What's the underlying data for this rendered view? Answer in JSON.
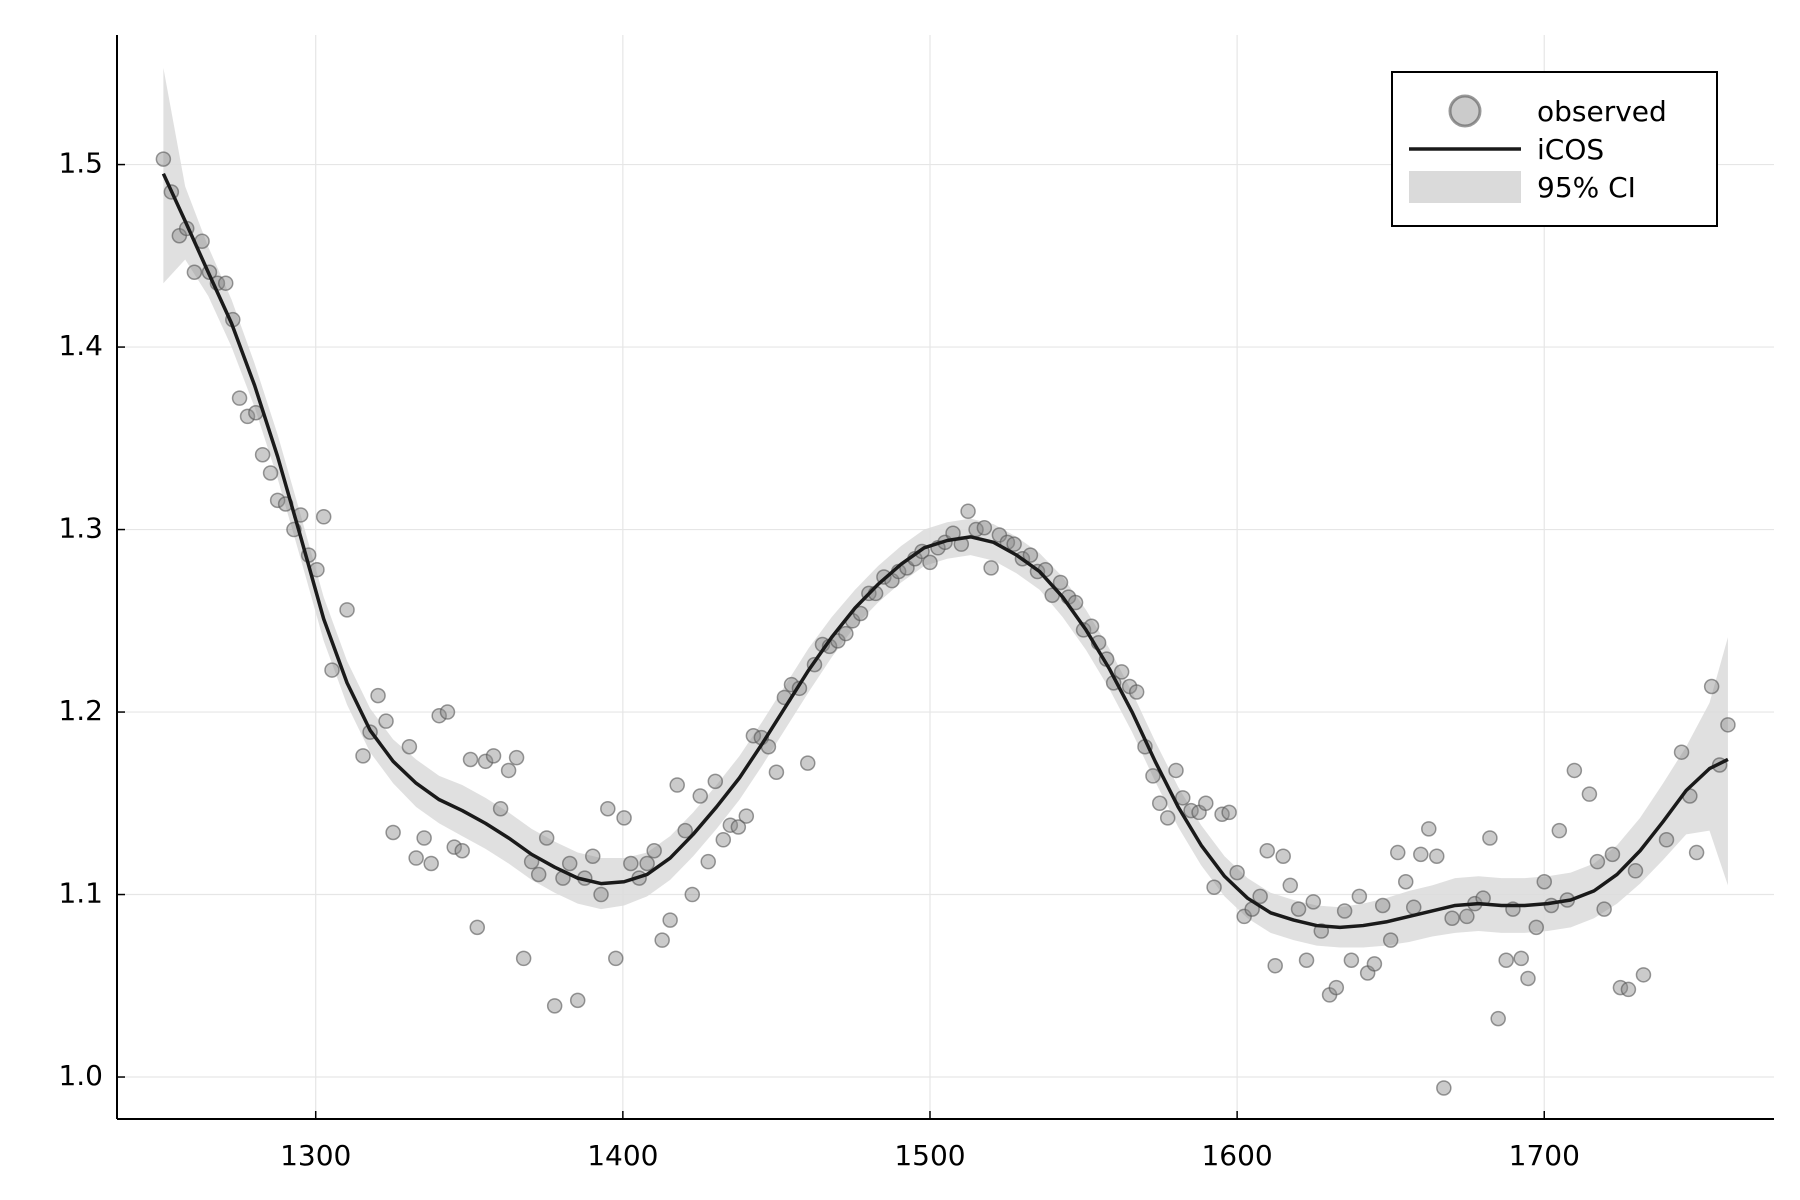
{
  "chart_data": {
    "type": "scatter",
    "xlim": [
      1235.3,
      1774.8
    ],
    "ylim": [
      0.977,
      1.571
    ],
    "xticks": [
      1300,
      1400,
      1500,
      1600,
      1700
    ],
    "yticks": [
      {
        "value": 1,
        "label": "1.0"
      },
      1.1,
      1.2,
      1.3,
      1.4,
      1.5
    ],
    "grid": true,
    "legend": "top-right",
    "series": [
      {
        "name": "observed",
        "type": "scatter",
        "color": "#8c8c8c",
        "x": [
          1250.4,
          1253,
          1255.6,
          1258,
          1260.5,
          1263,
          1265.4,
          1268,
          1270.7,
          1273,
          1275.2,
          1277.8,
          1280.5,
          1282.7,
          1285.3,
          1287.6,
          1290.2,
          1292.9,
          1295.1,
          1297.7,
          1300.4,
          1302.6,
          1305.3,
          1310.2,
          1315.4,
          1317.7,
          1320.3,
          1322.9,
          1325.2,
          1330.5,
          1332.7,
          1335.3,
          1337.6,
          1340.2,
          1342.9,
          1345.1,
          1347.7,
          1350.4,
          1352.6,
          1355.3,
          1357.9,
          1360.2,
          1362.8,
          1365.4,
          1367.7,
          1370.3,
          1372.6,
          1375.2,
          1377.8,
          1380.5,
          1382.7,
          1385.3,
          1387.6,
          1390.2,
          1392.9,
          1395.1,
          1397.7,
          1400.4,
          1402.6,
          1405.3,
          1407.9,
          1410.2,
          1412.8,
          1415.4,
          1417.7,
          1420.3,
          1422.6,
          1425.2,
          1427.8,
          1430.1,
          1432.7,
          1435,
          1437.6,
          1440.2,
          1442.5,
          1445.1,
          1447.4,
          1450,
          1452.6,
          1454.9,
          1457.5,
          1460.2,
          1462.4,
          1465,
          1467.3,
          1470,
          1472.6,
          1474.8,
          1477.4,
          1480.1,
          1482.3,
          1485,
          1487.6,
          1489.8,
          1492.5,
          1495.1,
          1497.4,
          1500,
          1502.6,
          1504.9,
          1507.5,
          1510.2,
          1512.4,
          1515,
          1517.7,
          1519.9,
          1522.6,
          1525.2,
          1527.4,
          1530.1,
          1532.7,
          1535,
          1537.6,
          1539.8,
          1542.5,
          1545.1,
          1547.4,
          1550,
          1552.6,
          1554.9,
          1557.5,
          1559.8,
          1562.4,
          1565,
          1567.3,
          1570,
          1572.6,
          1574.8,
          1577.4,
          1580.1,
          1582.3,
          1585,
          1587.6,
          1589.8,
          1592.5,
          1595.1,
          1597.4,
          1600,
          1602.3,
          1604.9,
          1607.5,
          1609.8,
          1612.4,
          1615,
          1617.3,
          1620,
          1622.6,
          1624.8,
          1627.4,
          1630.1,
          1632.3,
          1635,
          1637.2,
          1639.8,
          1642.5,
          1644.7,
          1647.4,
          1650,
          1652.3,
          1654.9,
          1657.5,
          1659.8,
          1662.4,
          1665,
          1667.3,
          1670,
          1674.8,
          1677.4,
          1680.1,
          1682.3,
          1685,
          1687.6,
          1689.8,
          1692.5,
          1694.7,
          1697.4,
          1700,
          1702.3,
          1704.9,
          1707.5,
          1709.8,
          1714.7,
          1717.3,
          1719.5,
          1722.2,
          1724.8,
          1727.4,
          1729.7,
          1732.3,
          1739.8,
          1744.7,
          1747.4,
          1749.6,
          1754.5,
          1757.1,
          1759.8
        ],
        "values": [
          1.503,
          1.485,
          1.461,
          1.465,
          1.441,
          1.458,
          1.441,
          1.435,
          1.435,
          1.415,
          1.372,
          1.362,
          1.364,
          1.341,
          1.331,
          1.316,
          1.314,
          1.3,
          1.308,
          1.286,
          1.278,
          1.307,
          1.223,
          1.256,
          1.176,
          1.189,
          1.209,
          1.195,
          1.134,
          1.181,
          1.12,
          1.131,
          1.117,
          1.198,
          1.2,
          1.126,
          1.124,
          1.174,
          1.082,
          1.173,
          1.176,
          1.147,
          1.168,
          1.175,
          1.065,
          1.118,
          1.111,
          1.131,
          1.039,
          1.109,
          1.117,
          1.042,
          1.109,
          1.121,
          1.1,
          1.147,
          1.065,
          1.142,
          1.117,
          1.109,
          1.117,
          1.124,
          1.075,
          1.086,
          1.16,
          1.135,
          1.1,
          1.154,
          1.118,
          1.162,
          1.13,
          1.138,
          1.137,
          1.143,
          1.187,
          1.186,
          1.181,
          1.167,
          1.208,
          1.215,
          1.213,
          1.172,
          1.226,
          1.237,
          1.236,
          1.239,
          1.243,
          1.25,
          1.254,
          1.265,
          1.265,
          1.274,
          1.272,
          1.277,
          1.279,
          1.284,
          1.288,
          1.282,
          1.29,
          1.293,
          1.298,
          1.292,
          1.31,
          1.3,
          1.301,
          1.279,
          1.297,
          1.293,
          1.292,
          1.284,
          1.286,
          1.277,
          1.278,
          1.264,
          1.271,
          1.263,
          1.26,
          1.245,
          1.247,
          1.238,
          1.229,
          1.216,
          1.222,
          1.214,
          1.211,
          1.181,
          1.165,
          1.15,
          1.142,
          1.168,
          1.153,
          1.146,
          1.145,
          1.15,
          1.104,
          1.144,
          1.145,
          1.112,
          1.088,
          1.092,
          1.099,
          1.124,
          1.061,
          1.121,
          1.105,
          1.092,
          1.064,
          1.096,
          1.08,
          1.045,
          1.049,
          1.091,
          1.064,
          1.099,
          1.057,
          1.062,
          1.094,
          1.075,
          1.123,
          1.107,
          1.093,
          1.122,
          1.136,
          1.121,
          0.994,
          1.087,
          1.088,
          1.095,
          1.098,
          1.131,
          1.032,
          1.064,
          1.092,
          1.065,
          1.054,
          1.082,
          1.107,
          1.094,
          1.135,
          1.097,
          1.168,
          1.155,
          1.118,
          1.092,
          1.122,
          1.049,
          1.048,
          1.113,
          1.056,
          1.13,
          1.178,
          1.154,
          1.123,
          1.214,
          1.171,
          1.193
        ]
      },
      {
        "name": "iCOS",
        "type": "line",
        "color": "#1a1a1a",
        "x": [
          1250.4,
          1257.5,
          1265,
          1272.6,
          1280.1,
          1287.6,
          1295.1,
          1302.6,
          1310.2,
          1317.7,
          1325.2,
          1332.7,
          1340.2,
          1347.7,
          1355.3,
          1362.8,
          1370.3,
          1377.8,
          1385.3,
          1392.9,
          1400.4,
          1407.9,
          1415.4,
          1422.9,
          1430.5,
          1438,
          1445.5,
          1453,
          1460.5,
          1468,
          1475.6,
          1483.1,
          1490.6,
          1498.1,
          1505.6,
          1513.2,
          1520.7,
          1528.2,
          1535.7,
          1543.2,
          1550.8,
          1558.3,
          1565.8,
          1573.3,
          1580.8,
          1588.3,
          1595.9,
          1603.4,
          1610.9,
          1618.4,
          1625.9,
          1633.5,
          1641,
          1648.5,
          1656,
          1663.5,
          1671,
          1678.6,
          1686.1,
          1693.6,
          1701.1,
          1708.6,
          1716.2,
          1723.7,
          1731.2,
          1738.7,
          1746.2,
          1753.8,
          1759.8
        ],
        "values": [
          1.495,
          1.469,
          1.441,
          1.413,
          1.379,
          1.34,
          1.296,
          1.251,
          1.216,
          1.19,
          1.173,
          1.161,
          1.152,
          1.146,
          1.139,
          1.131,
          1.122,
          1.115,
          1.109,
          1.106,
          1.107,
          1.111,
          1.12,
          1.133,
          1.148,
          1.164,
          1.183,
          1.203,
          1.223,
          1.241,
          1.257,
          1.27,
          1.281,
          1.29,
          1.294,
          1.296,
          1.293,
          1.286,
          1.277,
          1.263,
          1.245,
          1.224,
          1.2,
          1.173,
          1.148,
          1.127,
          1.11,
          1.098,
          1.09,
          1.086,
          1.083,
          1.082,
          1.083,
          1.085,
          1.088,
          1.091,
          1.094,
          1.095,
          1.094,
          1.094,
          1.095,
          1.097,
          1.102,
          1.111,
          1.124,
          1.14,
          1.157,
          1.169,
          1.174
        ]
      },
      {
        "name": "95% CI",
        "type": "band",
        "color": "#dadada",
        "x": [
          1250.4,
          1257.5,
          1265,
          1272.6,
          1280.1,
          1287.6,
          1295.1,
          1302.6,
          1310.2,
          1317.7,
          1325.2,
          1332.7,
          1340.2,
          1347.7,
          1355.3,
          1362.8,
          1370.3,
          1377.8,
          1385.3,
          1392.9,
          1400.4,
          1407.9,
          1415.4,
          1422.9,
          1430.5,
          1438,
          1445.5,
          1453,
          1460.5,
          1468,
          1475.6,
          1483.1,
          1490.6,
          1498.1,
          1505.6,
          1513.2,
          1520.7,
          1528.2,
          1535.7,
          1543.2,
          1550.8,
          1558.3,
          1565.8,
          1573.3,
          1580.8,
          1588.3,
          1595.9,
          1603.4,
          1610.9,
          1618.4,
          1625.9,
          1633.5,
          1641,
          1648.5,
          1656,
          1663.5,
          1671,
          1678.6,
          1686.1,
          1693.6,
          1701.1,
          1708.6,
          1716.2,
          1723.7,
          1731.2,
          1738.7,
          1746.2,
          1753.8,
          1759.8
        ],
        "lower": [
          1.435,
          1.448,
          1.428,
          1.4,
          1.367,
          1.328,
          1.284,
          1.239,
          1.204,
          1.178,
          1.161,
          1.148,
          1.139,
          1.132,
          1.125,
          1.117,
          1.108,
          1.101,
          1.095,
          1.092,
          1.094,
          1.099,
          1.108,
          1.121,
          1.136,
          1.152,
          1.171,
          1.191,
          1.211,
          1.23,
          1.247,
          1.26,
          1.271,
          1.28,
          1.284,
          1.286,
          1.283,
          1.276,
          1.267,
          1.252,
          1.234,
          1.213,
          1.189,
          1.162,
          1.137,
          1.116,
          1.099,
          1.087,
          1.079,
          1.075,
          1.072,
          1.071,
          1.071,
          1.072,
          1.074,
          1.077,
          1.079,
          1.08,
          1.079,
          1.079,
          1.08,
          1.082,
          1.087,
          1.095,
          1.106,
          1.119,
          1.133,
          1.135,
          1.105
        ],
        "upper": [
          1.553,
          1.488,
          1.455,
          1.426,
          1.391,
          1.352,
          1.308,
          1.263,
          1.228,
          1.202,
          1.185,
          1.174,
          1.165,
          1.16,
          1.153,
          1.145,
          1.136,
          1.129,
          1.123,
          1.12,
          1.12,
          1.123,
          1.132,
          1.145,
          1.16,
          1.176,
          1.195,
          1.215,
          1.235,
          1.252,
          1.267,
          1.28,
          1.291,
          1.3,
          1.304,
          1.306,
          1.303,
          1.296,
          1.287,
          1.274,
          1.256,
          1.235,
          1.211,
          1.184,
          1.159,
          1.138,
          1.121,
          1.109,
          1.101,
          1.097,
          1.094,
          1.093,
          1.095,
          1.098,
          1.102,
          1.105,
          1.109,
          1.11,
          1.109,
          1.109,
          1.11,
          1.112,
          1.117,
          1.127,
          1.142,
          1.161,
          1.181,
          1.205,
          1.241
        ]
      }
    ]
  }
}
